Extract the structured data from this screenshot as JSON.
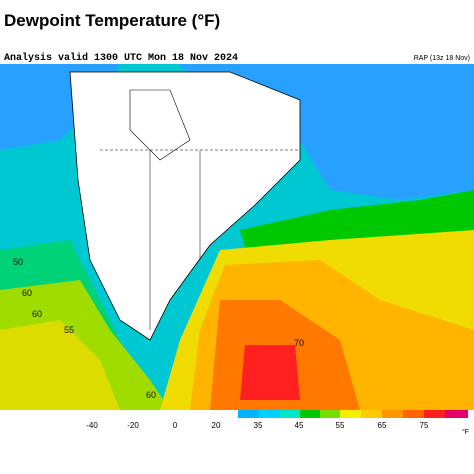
{
  "header": {
    "title": "Dewpoint Temperature (°F)",
    "subtitle": "Analysis valid 1300 UTC Mon 18 Nov 2024",
    "model": "RAP (13z 18 Nov)"
  },
  "map": {
    "contour_labels": [
      "50",
      "60",
      "60",
      "55",
      "70",
      "60"
    ]
  },
  "colorbar": {
    "ticks": [
      "-40",
      "-20",
      "0",
      "20",
      "35",
      "45",
      "55",
      "65",
      "75"
    ],
    "unit": "°F"
  }
}
